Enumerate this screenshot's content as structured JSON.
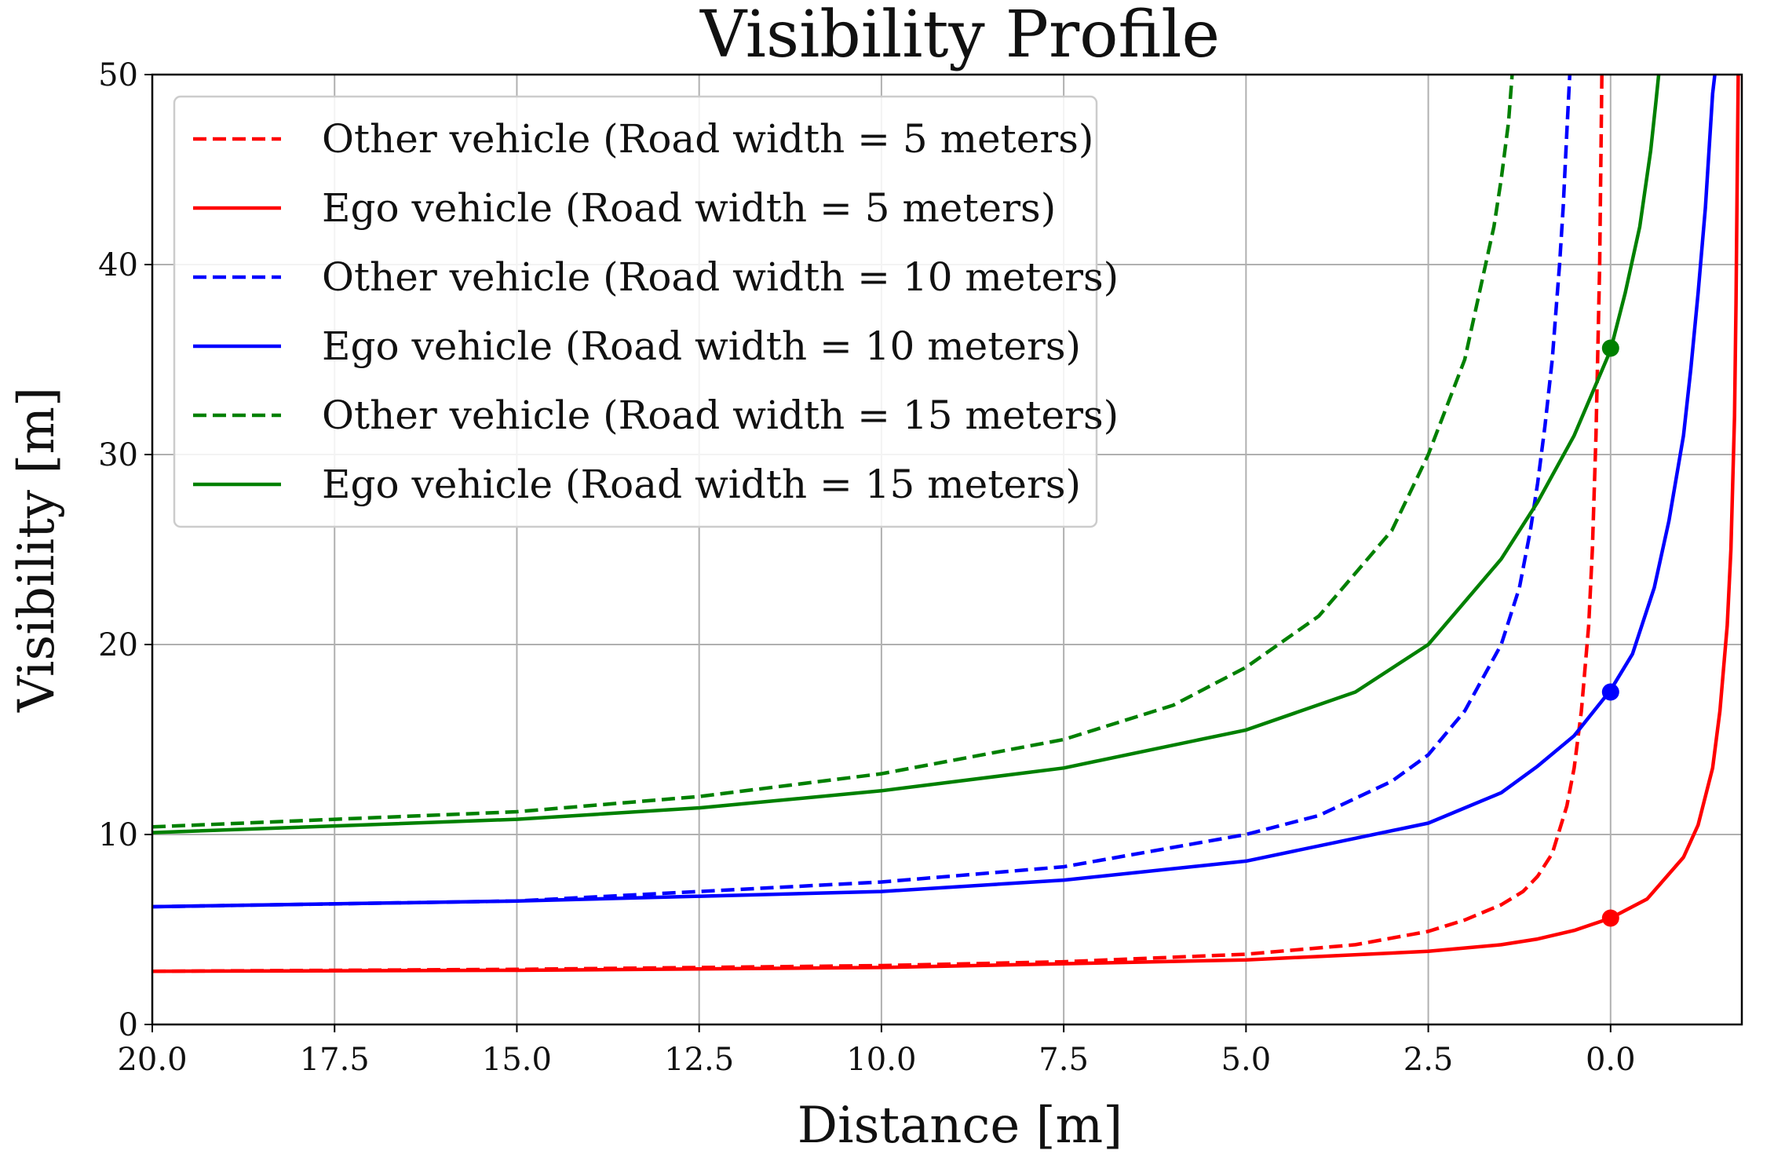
{
  "chart_data": {
    "type": "line",
    "title": "Visibility Profile",
    "xlabel": "Distance [m]",
    "ylabel": "Visibility [m]",
    "xlim": [
      20.0,
      -1.8
    ],
    "ylim": [
      0,
      50
    ],
    "x_inverted": true,
    "grid": true,
    "legend_position": "top-left",
    "x_ticks": [
      20.0,
      17.5,
      15.0,
      12.5,
      10.0,
      7.5,
      5.0,
      2.5,
      0.0
    ],
    "x_tick_labels": [
      "20.0",
      "17.5",
      "15.0",
      "12.5",
      "10.0",
      "7.5",
      "5.0",
      "2.5",
      "0.0"
    ],
    "y_ticks": [
      0,
      10,
      20,
      30,
      40,
      50
    ],
    "y_tick_labels": [
      "0",
      "10",
      "20",
      "30",
      "40",
      "50"
    ],
    "series": [
      {
        "name": "Other vehicle (Road width = 5 meters)",
        "legend_label": "Other vehicle (Road width = 5 meters)",
        "color": "#ff0000",
        "style": "dashed",
        "x": [
          20,
          15,
          10,
          7.5,
          5,
          3.5,
          2.5,
          2.0,
          1.5,
          1.2,
          1.0,
          0.8,
          0.6,
          0.5,
          0.4,
          0.3,
          0.25,
          0.2,
          0.15,
          0.12
        ],
        "y": [
          2.8,
          2.9,
          3.1,
          3.3,
          3.7,
          4.2,
          4.9,
          5.5,
          6.3,
          7.0,
          7.8,
          9.0,
          11.5,
          13.5,
          16.5,
          21.0,
          25.0,
          31.0,
          40.0,
          50.0
        ]
      },
      {
        "name": "Ego vehicle (Road width = 5 meters)",
        "legend_label": "Ego vehicle (Road width = 5 meters)",
        "color": "#ff0000",
        "style": "solid",
        "x": [
          20,
          15,
          10,
          7.5,
          5,
          2.5,
          1.5,
          1.0,
          0.5,
          0.0,
          -0.5,
          -1.0,
          -1.2,
          -1.4,
          -1.5,
          -1.6,
          -1.65,
          -1.7,
          -1.72,
          -1.75
        ],
        "y": [
          2.8,
          2.85,
          3.0,
          3.2,
          3.4,
          3.85,
          4.2,
          4.5,
          4.95,
          5.6,
          6.6,
          8.8,
          10.5,
          13.5,
          16.5,
          21.0,
          25.0,
          32.0,
          38.0,
          50.0
        ]
      },
      {
        "name": "Other vehicle (Road width = 10 meters)",
        "legend_label": "Other vehicle (Road width = 10 meters)",
        "color": "#0000ff",
        "style": "dashed",
        "x": [
          20,
          15,
          10,
          7.5,
          5,
          4,
          3,
          2.5,
          2,
          1.5,
          1.25,
          1.1,
          1.0,
          0.9,
          0.8,
          0.75,
          0.7,
          0.65,
          0.6,
          0.56
        ],
        "y": [
          6.2,
          6.5,
          7.5,
          8.3,
          10.0,
          11.0,
          12.8,
          14.2,
          16.5,
          20.0,
          23.0,
          26.0,
          28.5,
          31.5,
          35.0,
          37.5,
          40.0,
          43.0,
          47.0,
          50.0
        ]
      },
      {
        "name": "Ego vehicle (Road width = 10 meters)",
        "legend_label": "Ego vehicle (Road width = 10 meters)",
        "color": "#0000ff",
        "style": "solid",
        "x": [
          20,
          15,
          10,
          7.5,
          5,
          2.5,
          1.5,
          1.0,
          0.5,
          0.0,
          -0.3,
          -0.6,
          -0.8,
          -1.0,
          -1.1,
          -1.2,
          -1.3,
          -1.35,
          -1.4,
          -1.43
        ],
        "y": [
          6.2,
          6.5,
          7.0,
          7.6,
          8.6,
          10.6,
          12.2,
          13.6,
          15.2,
          17.6,
          19.5,
          23.0,
          26.5,
          31.0,
          34.5,
          38.5,
          43.0,
          46.0,
          49.0,
          50.0
        ]
      },
      {
        "name": "Other vehicle (Road width = 15 meters)",
        "legend_label": "Other vehicle (Road width = 15 meters)",
        "color": "#008000",
        "style": "dashed",
        "x": [
          20,
          15,
          12.5,
          10,
          7.5,
          6,
          5,
          4,
          3,
          2.5,
          2.0,
          1.8,
          1.6,
          1.5,
          1.4,
          1.35
        ],
        "y": [
          10.4,
          11.2,
          12.0,
          13.2,
          15.0,
          16.8,
          18.8,
          21.5,
          26.0,
          30.0,
          35.0,
          38.5,
          42.0,
          44.5,
          47.5,
          50.0
        ]
      },
      {
        "name": "Ego vehicle (Road width = 15 meters)",
        "legend_label": "Ego vehicle (Road width = 15 meters)",
        "color": "#008000",
        "style": "solid",
        "x": [
          20,
          15,
          12.5,
          10,
          7.5,
          5,
          3.5,
          2.5,
          1.5,
          1.0,
          0.5,
          0.0,
          -0.2,
          -0.4,
          -0.55,
          -0.62,
          -0.66
        ],
        "y": [
          10.1,
          10.8,
          11.4,
          12.3,
          13.5,
          15.5,
          17.5,
          20.0,
          24.5,
          27.5,
          31.0,
          35.5,
          38.5,
          42.0,
          46.0,
          48.5,
          50.0
        ]
      }
    ],
    "markers": [
      {
        "name": "red-marker",
        "color": "#ff0000",
        "x": 0.0,
        "y": 5.6
      },
      {
        "name": "blue-marker",
        "color": "#0000ff",
        "x": 0.0,
        "y": 17.5
      },
      {
        "name": "green-marker",
        "color": "#008000",
        "x": 0.0,
        "y": 35.6
      }
    ]
  }
}
